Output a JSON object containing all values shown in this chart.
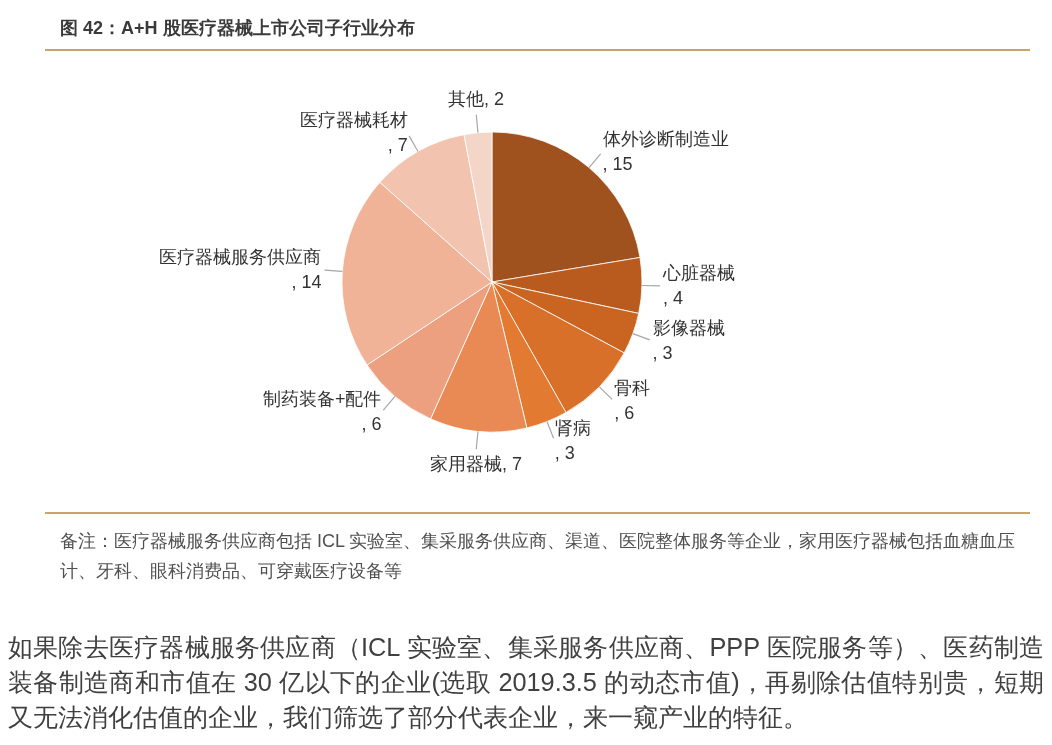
{
  "chart_data": {
    "type": "pie",
    "title": "图 42：A+H 股医疗器械上市公司子行业分布",
    "categories": [
      "体外诊断制造业",
      "心脏器械",
      "影像器械",
      "骨科",
      "肾病",
      "家用器械",
      "制药装备+配件",
      "医疗器械服务供应商",
      "医疗器械耗材",
      "其他"
    ],
    "values": [
      15,
      4,
      3,
      6,
      3,
      7,
      6,
      14,
      7,
      2
    ],
    "value_labels": [
      ", 15",
      ", 4",
      ", 3",
      ", 6",
      ", 3",
      ", 7",
      ", 6",
      ", 14",
      ", 7",
      ", 2"
    ],
    "colors": [
      "#a0521e",
      "#b95b1f",
      "#c96521",
      "#d8702a",
      "#e27a31",
      "#e98a55",
      "#eca07f",
      "#f0b397",
      "#f2c4af",
      "#f4d6c9"
    ],
    "annotations": [
      "备注：医疗器械服务供应商包括 ICL 实验室、集采服务供应商、渠道、医院整体服务等企业，家用医疗器械包括血糖血压计、牙科、眼科消费品、可穿戴医疗设备等",
      "如果除去医疗器械服务供应商（ICL 实验室、集采服务供应商、PPP 医院服务等）、医药制造装备制造商和市值在 30 亿以下的企业(选取 2019.3.5 的动态市值)，再剔除估值特别贵，短期又无法消化估值的企业，我们筛选了部分代表企业，来一窥产业的特征。"
    ]
  }
}
